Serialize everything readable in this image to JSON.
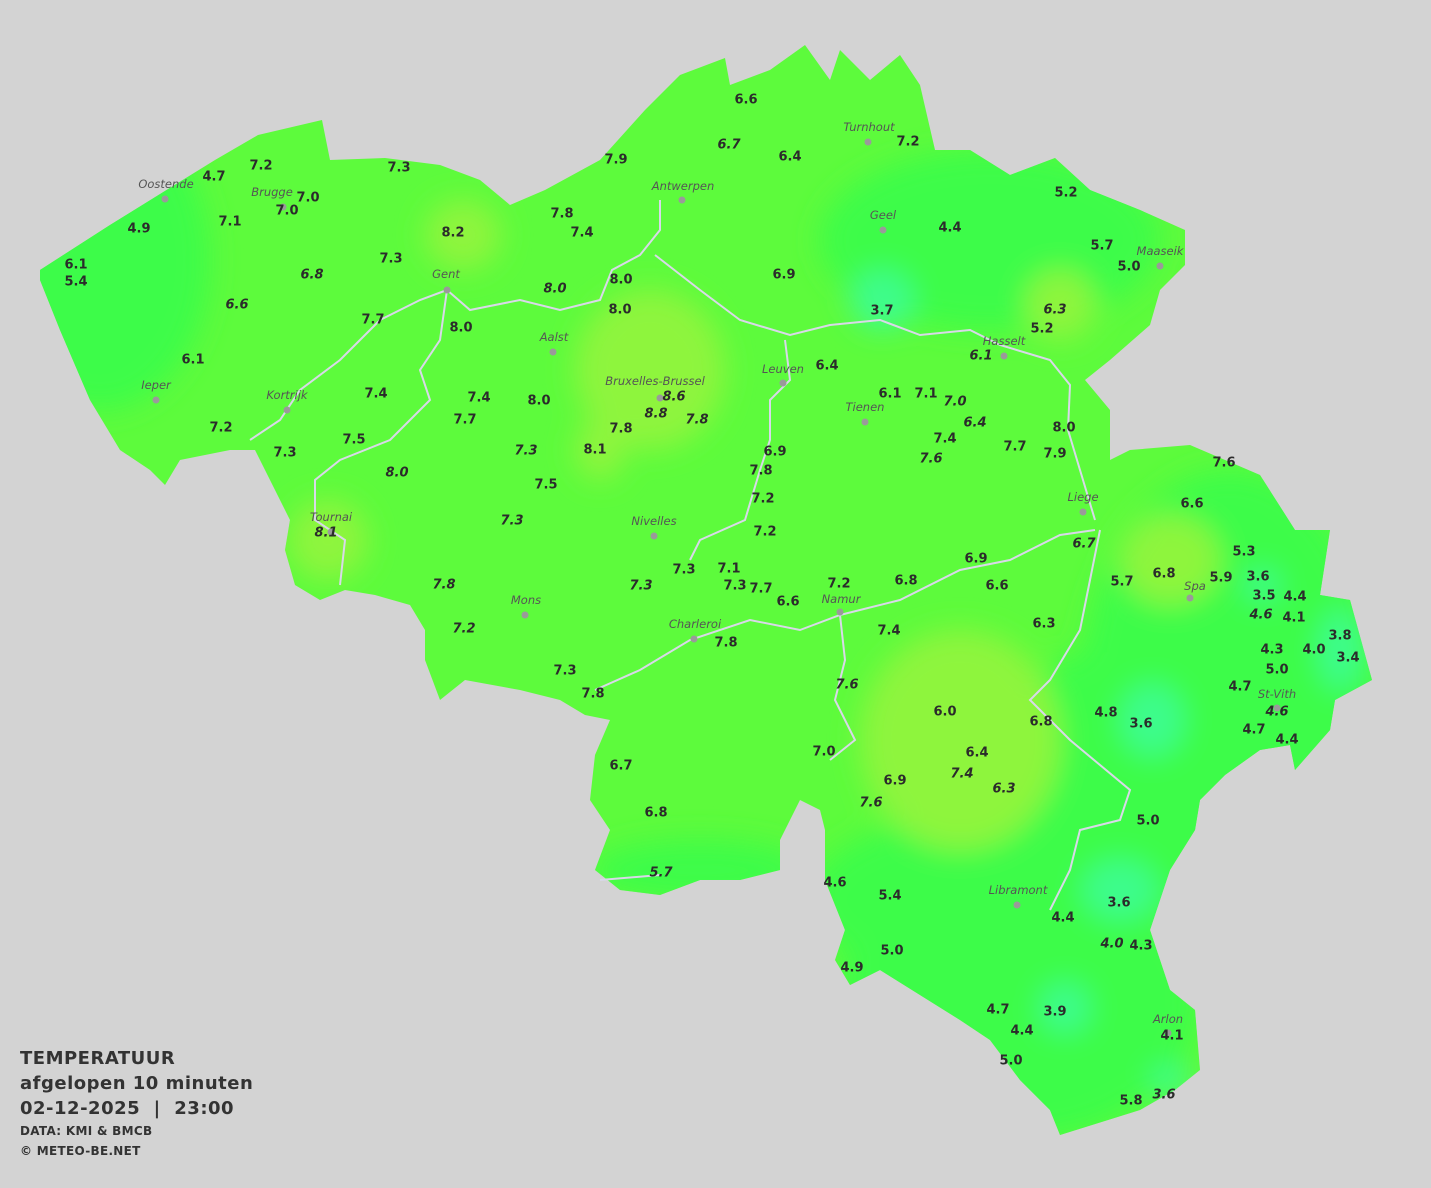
{
  "legend": {
    "title": "TEMPERATUUR",
    "subtitle": "afgelopen 10 minuten",
    "datetime": "02-12-2025  |  23:00",
    "source": "DATA: KMI & BMCB",
    "copyright": "© METEO-BE.NET"
  },
  "colors": {
    "background": "#d3d3d3",
    "base": "#5dfb3c",
    "cool": "#3cfc48",
    "cold": "#3efc8c",
    "warm": "#8ef53e",
    "rivers": "#d8d8e8"
  },
  "cities": [
    "Oostende",
    "Brugge",
    "Gent",
    "Antwerpen",
    "Turnhout",
    "Geel",
    "Maaseik",
    "Hasselt",
    "Aalst",
    "Leuven",
    "Bruxelles-Brussel",
    "Tienen",
    "Ieper",
    "Kortrijk",
    "Liege",
    "Tournai",
    "Nivelles",
    "Spa",
    "Mons",
    "Namur",
    "Charleroi",
    "St-Vith",
    "Libramont",
    "Arlon"
  ],
  "stations": [
    "6.6",
    "6.7",
    "6.4",
    "7.2",
    "7.9",
    "7.3",
    "7.2",
    "4.7",
    "7.0",
    "7.0",
    "7.1",
    "4.9",
    "7.8",
    "7.4",
    "8.2",
    "5.2",
    "4.4",
    "5.7",
    "5.0",
    "6.1",
    "5.4",
    "7.3",
    "6.8",
    "6.9",
    "8.0",
    "8.0",
    "6.6",
    "8.0",
    "3.7",
    "6.3",
    "7.7",
    "8.0",
    "5.2",
    "6.1",
    "6.1",
    "6.4",
    "7.4",
    "7.4",
    "8.0",
    "8.6",
    "6.1",
    "7.1",
    "7.0",
    "8.8",
    "6.4",
    "7.7",
    "7.8",
    "7.2",
    "7.8",
    "8.0",
    "7.5",
    "7.4",
    "7.3",
    "7.3",
    "8.1",
    "6.9",
    "7.6",
    "7.7",
    "7.9",
    "7.6",
    "8.0",
    "7.8",
    "7.5",
    "7.2",
    "6.6",
    "7.3",
    "8.1",
    "7.2",
    "6.7",
    "5.3",
    "6.9",
    "7.3",
    "7.1",
    "5.7",
    "6.8",
    "5.9",
    "3.6",
    "7.8",
    "7.3",
    "7.3",
    "7.7",
    "6.8",
    "6.6",
    "7.2",
    "3.5",
    "4.4",
    "6.6",
    "4.6",
    "4.1",
    "3.8",
    "7.2",
    "7.4",
    "6.3",
    "7.8",
    "4.3",
    "4.0",
    "3.4",
    "5.0",
    "7.3",
    "7.6",
    "4.7",
    "7.8",
    "6.0",
    "4.8",
    "3.6",
    "4.6",
    "6.8",
    "4.7",
    "4.4",
    "7.0",
    "6.4",
    "7.4",
    "6.7",
    "6.9",
    "6.3",
    "7.6",
    "6.8",
    "5.0",
    "5.7",
    "4.6",
    "5.4",
    "3.6",
    "4.4",
    "4.0",
    "4.3",
    "5.0",
    "4.9",
    "3.9",
    "4.7",
    "4.4",
    "4.1",
    "5.0",
    "5.8",
    "3.6"
  ]
}
